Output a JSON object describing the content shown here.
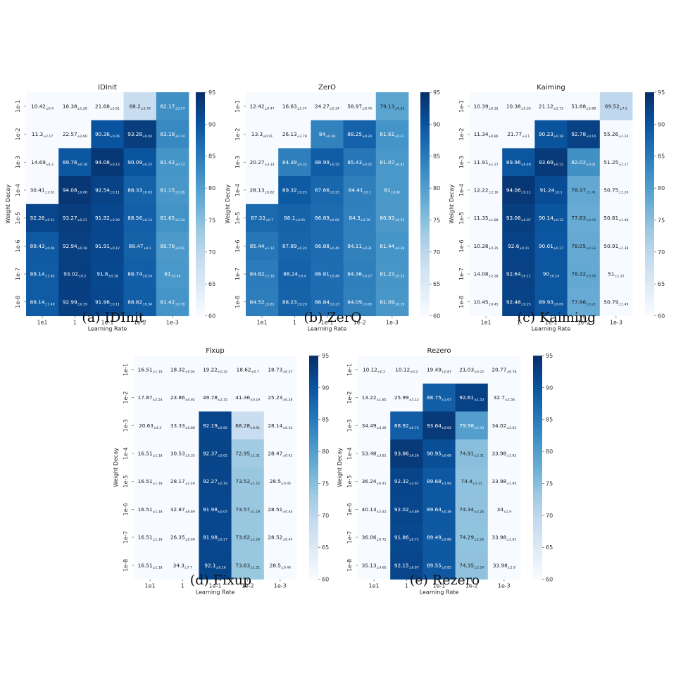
{
  "figure": {
    "x_axis_label": "Learning Rate",
    "y_axis_label": "Weight Decay",
    "x_ticks": [
      "1e1",
      "1",
      "1e-1",
      "1e-2",
      "1e-3"
    ],
    "y_ticks": [
      "1e-1",
      "1e-2",
      "1e-3",
      "1e-4",
      "1e-5",
      "1e-6",
      "1e-7",
      "1e-8"
    ],
    "colorbar_ticks": [
      95,
      90,
      85,
      80,
      75,
      70,
      65,
      60
    ],
    "colormap": [
      "#f7fbff",
      "#deebf7",
      "#c6dbef",
      "#9ecae1",
      "#6baed6",
      "#4292c6",
      "#2171b5",
      "#08519c",
      "#08306b"
    ]
  },
  "chart_data": [
    {
      "type": "heatmap",
      "title": "IDInit",
      "caption": "(a) IDInit",
      "xlabel": "Learning Rate",
      "ylabel": "Weight Decay",
      "x": [
        "1e1",
        "1",
        "1e-1",
        "1e-2",
        "1e-3"
      ],
      "y": [
        "1e-1",
        "1e-2",
        "1e-3",
        "1e-4",
        "1e-5",
        "1e-6",
        "1e-7",
        "1e-8"
      ],
      "color_range": [
        60,
        95
      ],
      "values": [
        [
          10.42,
          16.38,
          21.68,
          68.2,
          82.17
        ],
        [
          11.3,
          22.57,
          90.36,
          93.28,
          83.18
        ],
        [
          14.69,
          89.76,
          94.08,
          90.09,
          81.42
        ],
        [
          30.41,
          94.08,
          92.54,
          88.33,
          81.15
        ],
        [
          92.26,
          93.27,
          91.92,
          88.56,
          81.65
        ],
        [
          89.43,
          92.94,
          91.91,
          88.47,
          80.76
        ],
        [
          89.14,
          93.02,
          91.8,
          88.74,
          81.0
        ],
        [
          89.14,
          92.99,
          91.96,
          88.82,
          81.42
        ]
      ],
      "std": [
        [
          "±0.4",
          "±1.28",
          "±2.61",
          "±5.79",
          "±0.14"
        ],
        [
          "±2.17",
          "±2.69",
          "±0.06",
          "±0.04",
          "±0.14"
        ],
        [
          "±4.2",
          "±0.18",
          "±0.13",
          "±0.22",
          "±0.13"
        ],
        [
          "±2.61",
          "±0.08",
          "±0.11",
          "±0.03",
          "±0.26"
        ],
        [
          "±0.51",
          "±0.21",
          "±0.29",
          "±0.13",
          "±0.34"
        ],
        [
          "±0.94",
          "±0.18",
          "±0.12",
          "±0.1",
          "±0.61"
        ],
        [
          "±1.85",
          "±0.2",
          "±0.18",
          "±0.24",
          "±0.44"
        ],
        [
          "±1.49",
          "±0.19",
          "±0.11",
          "±0.34",
          "±0.78"
        ]
      ]
    },
    {
      "type": "heatmap",
      "title": "ZerO",
      "caption": "(b) ZerO",
      "xlabel": "Learning Rate",
      "ylabel": "Weight Decay",
      "x": [
        "1e1",
        "1",
        "1e-1",
        "1e-2",
        "1e-3"
      ],
      "y": [
        "1e-1",
        "1e-2",
        "1e-3",
        "1e-4",
        "1e-5",
        "1e-6",
        "1e-7",
        "1e-8"
      ],
      "color_range": [
        60,
        95
      ],
      "values": [
        [
          12.42,
          16.63,
          24.27,
          58.97,
          79.13
        ],
        [
          13.3,
          26.13,
          84.0,
          88.25,
          81.61
        ],
        [
          20.27,
          84.39,
          88.99,
          85.43,
          81.07
        ],
        [
          28.13,
          89.32,
          87.66,
          84.41,
          81.0
        ],
        [
          87.33,
          88.1,
          86.89,
          84.3,
          80.93
        ],
        [
          85.44,
          87.89,
          86.88,
          84.11,
          81.44
        ],
        [
          84.82,
          88.24,
          86.81,
          84.36,
          81.23
        ],
        [
          84.52,
          88.23,
          86.84,
          84.09,
          81.09
        ]
      ],
      "std": [
        [
          "±0.47",
          "±2.74",
          "±0.34",
          "±8.76",
          "±0.26"
        ],
        [
          "±0.91",
          "±3.78",
          "±0.38",
          "±0.24",
          "±0.31"
        ],
        [
          "±3.33",
          "±0.32",
          "±0.25",
          "±0.25",
          "±0.41"
        ],
        [
          "±6.82",
          "±0.25",
          "±0.25",
          "±0.1",
          "±0.42"
        ],
        [
          "±0.7",
          "±0.91",
          "±0.06",
          "±0.39",
          "±0.55"
        ],
        [
          "±1.12",
          "±0.24",
          "±0.46",
          "±0.31",
          "±0.38"
        ],
        [
          "±1.35",
          "±0.4",
          "±0.48",
          "±0.17",
          "±0.22"
        ],
        [
          "±0.81",
          "±0.29",
          "±0.23",
          "±0.05",
          "±0.19"
        ]
      ]
    },
    {
      "type": "heatmap",
      "title": "Kaiming",
      "caption": "(c) Kaiming",
      "xlabel": "Learning Rate",
      "ylabel": "Weight Decay",
      "x": [
        "1e1",
        "1",
        "1e-1",
        "1e-2",
        "1e-3"
      ],
      "y": [
        "1e-1",
        "1e-2",
        "1e-3",
        "1e-4",
        "1e-5",
        "1e-6",
        "1e-7",
        "1e-8"
      ],
      "color_range": [
        60,
        95
      ],
      "values": [
        [
          10.39,
          10.38,
          21.12,
          51.88,
          69.52
        ],
        [
          11.34,
          21.77,
          90.23,
          92.78,
          55.26
        ],
        [
          11.91,
          89.96,
          93.69,
          82.02,
          51.25
        ],
        [
          12.22,
          94.06,
          91.24,
          78.37,
          50.75
        ],
        [
          11.35,
          93.06,
          90.14,
          77.83,
          50.81
        ],
        [
          10.28,
          92.6,
          90.01,
          78.05,
          50.91
        ],
        [
          14.08,
          92.64,
          90.0,
          78.32,
          51.0
        ],
        [
          10.45,
          92.48,
          89.93,
          77.96,
          50.79
        ]
      ],
      "std": [
        [
          "±0.35",
          "±0.35",
          "±2.73",
          "±5.98",
          "±7.6"
        ],
        [
          "±0.86",
          "±3.1",
          "±0.18",
          "±0.14",
          "±1.14"
        ],
        [
          "±1.27",
          "±0.49",
          "±0.12",
          "±0.01",
          "±1.17"
        ],
        [
          "±2.16",
          "±0.11",
          "±0.1",
          "±1.41",
          "±1.26"
        ],
        [
          "±1.88",
          "±0.07",
          "±0.12",
          "±0.43",
          "±1.48"
        ],
        [
          "±0.25",
          "±0.11",
          "±0.17",
          "±0.33",
          "±1.38"
        ],
        [
          "±2.28",
          "±0.11",
          "±0.14",
          "±0.58",
          "±1.22"
        ],
        [
          "±0.45",
          "±0.25",
          "±0.09",
          "±0.21",
          "±1.49"
        ]
      ]
    },
    {
      "type": "heatmap",
      "title": "Fixup",
      "caption": "(d) Fixup",
      "xlabel": "Learning Rate",
      "ylabel": "Weight Decay",
      "x": [
        "1e1",
        "1",
        "1e-1",
        "1e-2",
        "1e-3"
      ],
      "y": [
        "1e-1",
        "1e-2",
        "1e-3",
        "1e-4",
        "1e-5",
        "1e-6",
        "1e-7",
        "1e-8"
      ],
      "color_range": [
        60,
        95
      ],
      "values": [
        [
          16.51,
          18.32,
          19.22,
          18.62,
          18.73
        ],
        [
          17.87,
          23.86,
          49.78,
          41.36,
          25.23
        ],
        [
          20.63,
          33.33,
          92.19,
          68.28,
          28.14
        ],
        [
          16.51,
          30.53,
          92.37,
          72.95,
          28.47
        ],
        [
          16.51,
          28.17,
          92.27,
          73.52,
          28.5
        ],
        [
          16.51,
          32.87,
          91.98,
          73.57,
          28.51
        ],
        [
          16.51,
          26.35,
          91.98,
          73.62,
          28.52
        ],
        [
          16.51,
          34.3,
          92.1,
          73.63,
          28.5
        ]
      ],
      "std": [
        [
          "±1.19",
          "±0.94",
          "±0.32",
          "±0.7",
          "±0.37"
        ],
        [
          "±2.54",
          "±0.92",
          "±2.35",
          "±0.19",
          "±0.28"
        ],
        [
          "±4.3",
          "±0.88",
          "±0.06",
          "±0.91",
          "±0.34"
        ],
        [
          "±1.18",
          "±5.35",
          "±0.02",
          "±1.31",
          "±0.42"
        ],
        [
          "±1.18",
          "±2.46",
          "±0.19",
          "±1.12",
          "±0.45"
        ],
        [
          "±1.18",
          "±6.89",
          "±0.07",
          "±1.19",
          "±0.44"
        ],
        [
          "±1.18",
          "±0.69",
          "±0.17",
          "±1.19",
          "±0.44"
        ],
        [
          "±1.18",
          "±7.7",
          "±0.16",
          "±1.21",
          "±0.44"
        ]
      ]
    },
    {
      "type": "heatmap",
      "title": "Rezero",
      "caption": "(e) Rezero",
      "xlabel": "Learning Rate",
      "ylabel": "Weight Decay",
      "x": [
        "1e1",
        "1",
        "1e-1",
        "1e-2",
        "1e-3"
      ],
      "y": [
        "1e-1",
        "1e-2",
        "1e-3",
        "1e-4",
        "1e-5",
        "1e-6",
        "1e-7",
        "1e-8"
      ],
      "color_range": [
        60,
        95
      ],
      "values": [
        [
          10.12,
          10.12,
          19.49,
          21.03,
          20.77
        ],
        [
          13.22,
          25.99,
          88.75,
          92.61,
          32.7
        ],
        [
          34.49,
          88.92,
          93.64,
          79.98,
          34.02
        ],
        [
          53.48,
          93.86,
          90.95,
          74.91,
          33.98
        ],
        [
          36.24,
          92.32,
          89.68,
          74.4,
          33.98
        ],
        [
          40.13,
          92.02,
          89.64,
          74.34,
          34.0
        ],
        [
          36.06,
          91.86,
          89.49,
          74.29,
          33.98
        ],
        [
          35.13,
          92.15,
          89.55,
          74.35,
          33.98
        ]
      ],
      "std": [
        [
          "±0.2",
          "±0.2",
          "±0.87",
          "±0.22",
          "±0.78"
        ],
        [
          "±1.85",
          "±5.12",
          "±1.67",
          "±1.53",
          "±2.56"
        ],
        [
          "±4.36",
          "±0.74",
          "±0.64",
          "±2.33",
          "±2.03"
        ],
        [
          "±3.81",
          "±0.26",
          "±0.68",
          "±2.31",
          "±1.92"
        ],
        [
          "±6.41",
          "±3.67",
          "±1.94",
          "±2.31",
          "±1.94"
        ],
        [
          "±5.45",
          "±3.89",
          "±0.38",
          "±2.26",
          "±1.9"
        ],
        [
          "±0.72",
          "±0.71",
          "±0.88",
          "±2.26",
          "±1.91"
        ],
        [
          "±4.65",
          "±0.97",
          "±0.82",
          "±2.24",
          "±1.9"
        ]
      ]
    }
  ]
}
